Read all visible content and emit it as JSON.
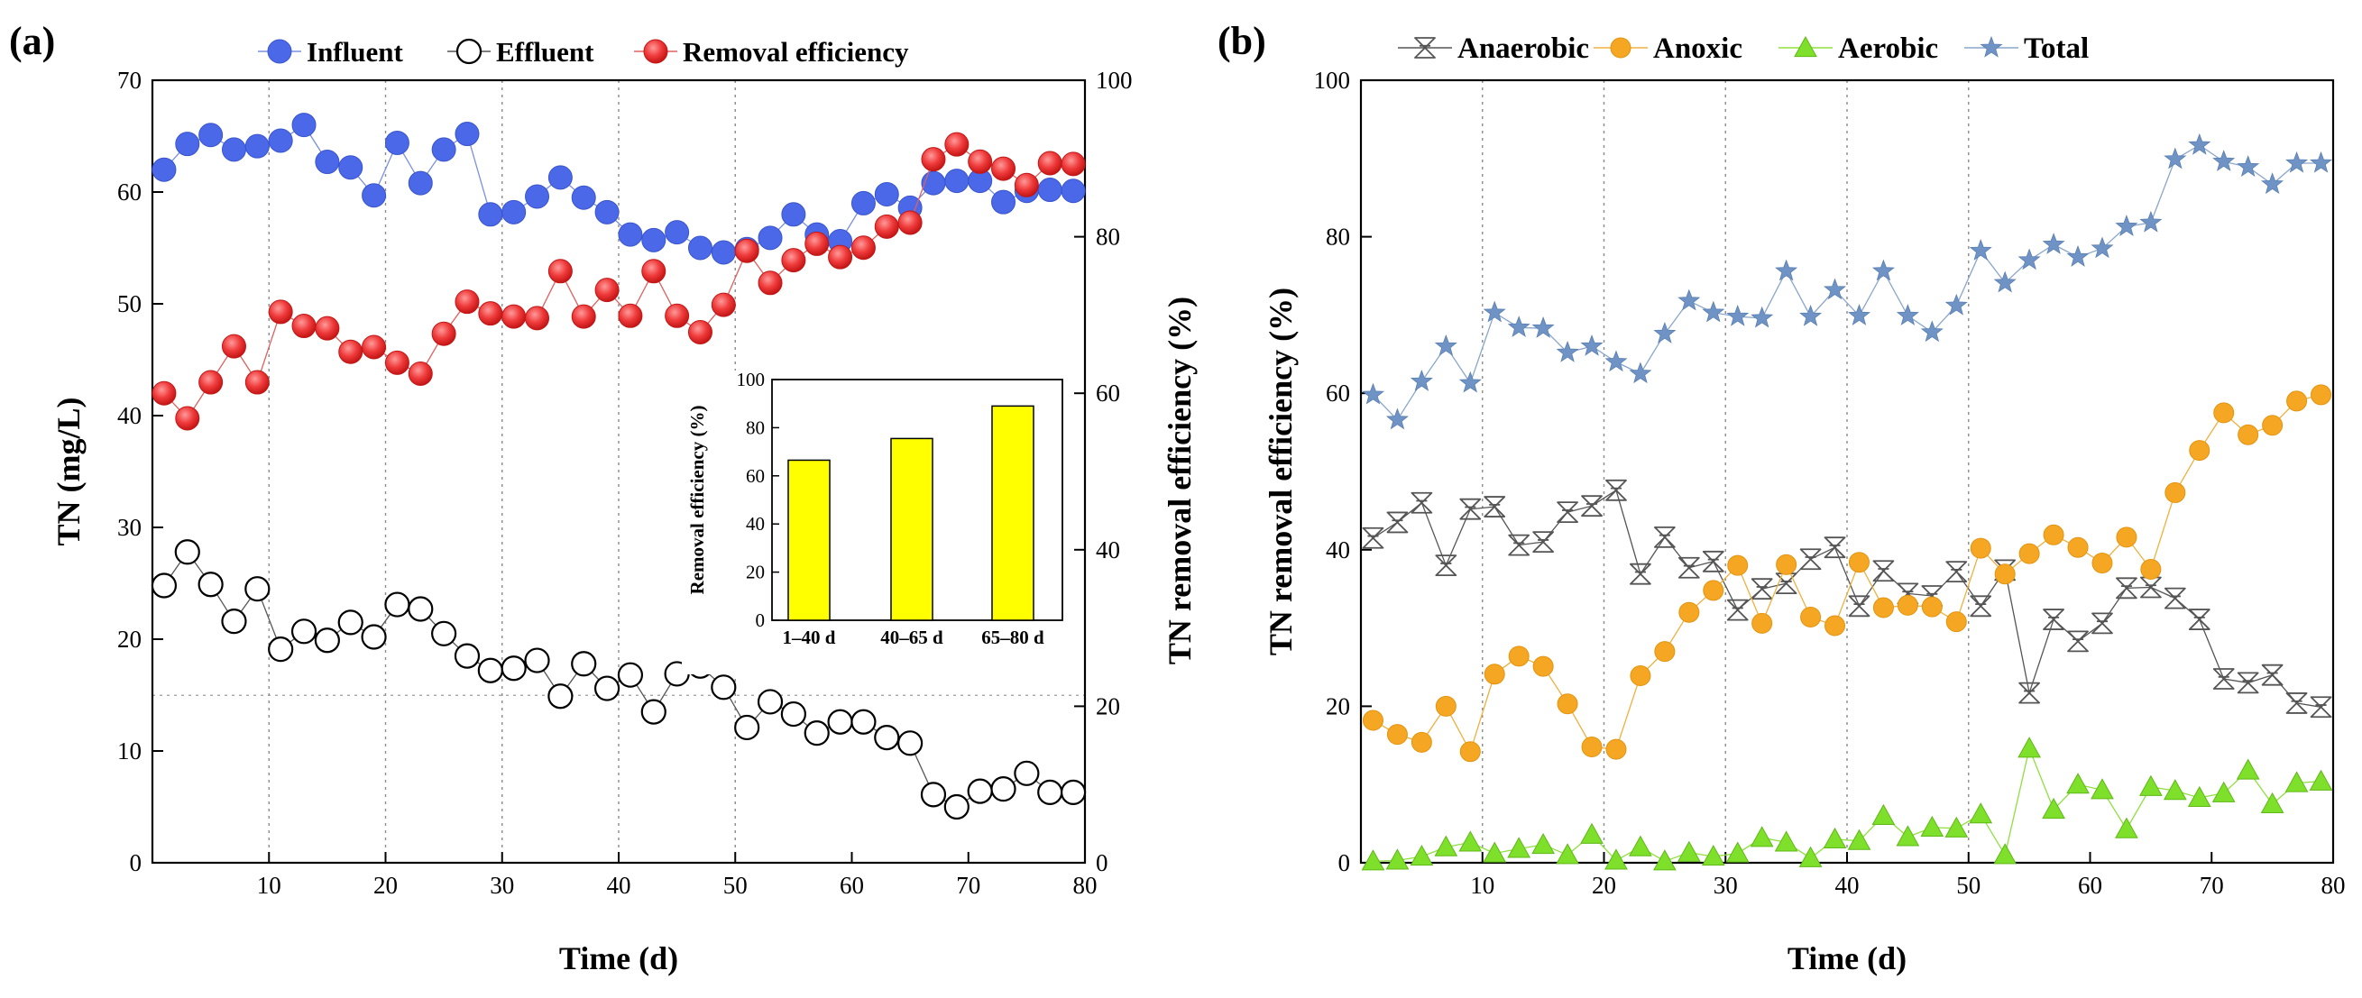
{
  "chart_data": [
    {
      "id": "a",
      "panel_label": "(a)",
      "type": "line",
      "title": "",
      "xlabel": "Time (d)",
      "ylabel": "TN (mg/L)",
      "y2label": "TN removal efficiency (%)",
      "xlim": [
        0,
        80
      ],
      "ylim": [
        0,
        70
      ],
      "y2lim": [
        0,
        100
      ],
      "xticks": [
        "10",
        "20",
        "30",
        "40",
        "50",
        "60",
        "70",
        "80"
      ],
      "yticks": [
        "0",
        "10",
        "20",
        "30",
        "40",
        "50",
        "60",
        "70"
      ],
      "y2ticks": [
        "0",
        "20",
        "40",
        "60",
        "80",
        "100"
      ],
      "vlines": [
        10,
        20,
        30,
        40,
        50
      ],
      "hline_y2": 21.4,
      "legend_position": "top",
      "x": [
        1,
        3,
        5,
        7,
        9,
        11,
        13,
        15,
        17,
        19,
        21,
        23,
        25,
        27,
        29,
        31,
        33,
        35,
        37,
        39,
        41,
        43,
        45,
        47,
        49,
        51,
        53,
        55,
        57,
        59,
        61,
        63,
        65,
        67,
        69,
        71,
        73,
        75,
        77,
        79
      ],
      "series": [
        {
          "name": "Influent",
          "axis": "left",
          "marker": "circle-filled",
          "color": "#4a68e8",
          "values": [
            62.0,
            64.3,
            65.1,
            63.8,
            64.1,
            64.6,
            66.0,
            62.7,
            62.2,
            59.7,
            64.4,
            60.8,
            63.8,
            65.2,
            58.0,
            58.2,
            59.6,
            61.3,
            59.5,
            58.2,
            56.2,
            55.7,
            56.4,
            55.0,
            54.6,
            54.9,
            55.9,
            58.0,
            56.2,
            55.6,
            59.0,
            59.8,
            58.6,
            60.8,
            61.0,
            61.0,
            59.1,
            60.1,
            60.2,
            60.1
          ]
        },
        {
          "name": "Effluent",
          "axis": "left",
          "marker": "circle-open",
          "color": "#000000",
          "values": [
            24.8,
            27.8,
            24.9,
            21.6,
            24.5,
            19.1,
            20.7,
            19.9,
            21.5,
            20.2,
            23.1,
            22.7,
            20.5,
            18.5,
            17.2,
            17.4,
            18.1,
            14.9,
            17.8,
            15.6,
            16.8,
            13.5,
            16.9,
            17.6,
            15.7,
            12.1,
            14.4,
            13.3,
            11.6,
            12.6,
            12.6,
            11.2,
            10.7,
            6.1,
            5.0,
            6.4,
            6.6,
            8.0,
            6.3,
            6.3
          ]
        },
        {
          "name": "Removal efficiency",
          "axis": "right",
          "marker": "circle-red",
          "color": "#e23030",
          "values": [
            60.0,
            56.8,
            61.4,
            66.0,
            61.4,
            70.4,
            68.6,
            68.3,
            65.3,
            65.9,
            63.9,
            62.5,
            67.6,
            71.7,
            70.2,
            69.8,
            69.6,
            75.6,
            69.8,
            73.2,
            69.9,
            75.6,
            69.9,
            67.8,
            71.3,
            78.2,
            74.1,
            77.0,
            79.1,
            77.4,
            78.6,
            81.3,
            81.8,
            89.9,
            91.8,
            89.6,
            88.7,
            86.6,
            89.4,
            89.3
          ]
        }
      ],
      "inset": {
        "type": "bar",
        "ylabel": "Removal efficiency (%)",
        "categories": [
          "1–40 d",
          "40–65 d",
          "65–80 d"
        ],
        "values": [
          66.5,
          75.5,
          89.0
        ],
        "ylim": [
          0,
          100
        ],
        "yticks": [
          "0",
          "20",
          "40",
          "60",
          "80",
          "100"
        ],
        "color": "#ffff00"
      }
    },
    {
      "id": "b",
      "panel_label": "(b)",
      "type": "line",
      "title": "",
      "xlabel": "Time (d)",
      "ylabel": "TN removal efficiency (%)",
      "xlim": [
        0,
        80
      ],
      "ylim": [
        0,
        100
      ],
      "xticks": [
        "10",
        "20",
        "30",
        "40",
        "50",
        "60",
        "70",
        "80"
      ],
      "yticks": [
        "0",
        "20",
        "40",
        "60",
        "80",
        "100"
      ],
      "vlines": [
        10,
        20,
        30,
        40,
        50
      ],
      "legend_position": "top",
      "x": [
        1,
        3,
        5,
        7,
        9,
        11,
        13,
        15,
        17,
        19,
        21,
        23,
        25,
        27,
        29,
        31,
        33,
        35,
        37,
        39,
        41,
        43,
        45,
        47,
        49,
        51,
        53,
        55,
        57,
        59,
        61,
        63,
        65,
        67,
        69,
        71,
        73,
        75,
        77,
        79
      ],
      "series": [
        {
          "name": "Anaerobic",
          "marker": "hourglass",
          "color": "#555555",
          "values": [
            41.5,
            43.5,
            46.0,
            38.0,
            45.2,
            45.5,
            40.6,
            41.0,
            44.8,
            45.6,
            47.6,
            36.9,
            41.6,
            37.7,
            38.5,
            32.3,
            35.0,
            35.7,
            38.8,
            40.3,
            32.8,
            37.3,
            34.4,
            34.1,
            37.2,
            32.8,
            37.4,
            21.7,
            31.1,
            28.3,
            30.6,
            35.1,
            35.2,
            33.8,
            31.1,
            23.5,
            23.0,
            24.0,
            20.4,
            19.9
          ]
        },
        {
          "name": "Anoxic",
          "marker": "circle-orange",
          "color": "#f5a623",
          "values": [
            18.2,
            16.4,
            15.4,
            20.0,
            14.2,
            24.1,
            26.4,
            25.1,
            20.3,
            14.8,
            14.5,
            23.9,
            27.0,
            32.0,
            34.8,
            38.0,
            30.6,
            38.1,
            31.4,
            30.3,
            38.4,
            32.6,
            32.9,
            32.7,
            30.8,
            40.2,
            36.9,
            39.5,
            41.9,
            40.3,
            38.3,
            41.6,
            37.5,
            47.3,
            52.7,
            57.5,
            54.7,
            55.9,
            59.0,
            59.8
          ]
        },
        {
          "name": "Aerobic",
          "marker": "triangle-green",
          "color": "#7ee02a",
          "values": [
            0.2,
            0.3,
            0.8,
            2.0,
            2.6,
            1.2,
            1.8,
            2.3,
            1.0,
            3.6,
            0.3,
            2.0,
            0.2,
            1.3,
            0.8,
            1.2,
            3.2,
            2.6,
            0.6,
            3.0,
            2.8,
            6.0,
            3.3,
            4.5,
            4.4,
            6.2,
            1.0,
            14.6,
            6.8,
            10.0,
            9.3,
            4.3,
            9.7,
            9.2,
            8.3,
            8.9,
            11.8,
            7.5,
            10.2,
            10.4
          ]
        },
        {
          "name": "Total",
          "marker": "star",
          "color": "#6f93c4",
          "values": [
            59.8,
            56.6,
            61.5,
            66.0,
            61.3,
            70.3,
            68.4,
            68.3,
            65.2,
            66.0,
            64.0,
            62.5,
            67.6,
            71.8,
            70.3,
            69.8,
            69.6,
            75.6,
            69.8,
            73.2,
            69.9,
            75.6,
            69.9,
            67.8,
            71.2,
            78.2,
            74.1,
            77.0,
            79.0,
            77.4,
            78.5,
            81.3,
            81.8,
            89.9,
            91.7,
            89.6,
            88.9,
            86.7,
            89.4,
            89.4
          ]
        }
      ]
    }
  ]
}
